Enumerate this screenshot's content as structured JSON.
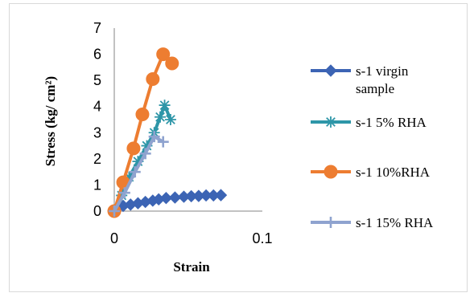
{
  "chart_data": {
    "type": "line",
    "title": "",
    "xlabel": "Strain",
    "ylabel": "Stress (kg/ cm²)",
    "xlim": [
      0,
      0.1
    ],
    "ylim": [
      0,
      7
    ],
    "x_ticks": [
      "0",
      "0.1"
    ],
    "y_ticks": [
      "0",
      "1",
      "2",
      "3",
      "4",
      "5",
      "6",
      "7"
    ],
    "grid": false,
    "legend_position": "right",
    "series": [
      {
        "name": "s-1 virgin sample",
        "legend_lines": [
          "s-1 virgin",
          "sample"
        ],
        "color": "#3c64b4",
        "marker": "diamond",
        "points": [
          [
            0,
            0
          ],
          [
            0.006,
            0.2
          ],
          [
            0.011,
            0.25
          ],
          [
            0.016,
            0.3
          ],
          [
            0.021,
            0.35
          ],
          [
            0.026,
            0.4
          ],
          [
            0.03,
            0.45
          ],
          [
            0.035,
            0.5
          ],
          [
            0.041,
            0.52
          ],
          [
            0.047,
            0.55
          ],
          [
            0.052,
            0.57
          ],
          [
            0.057,
            0.58
          ],
          [
            0.062,
            0.6
          ],
          [
            0.067,
            0.6
          ],
          [
            0.072,
            0.61
          ]
        ]
      },
      {
        "name": "s-1 5% RHA",
        "legend_lines": [
          "s-1 5% RHA"
        ],
        "color": "#2e96a8",
        "marker": "star",
        "points": [
          [
            0,
            0
          ],
          [
            0.005,
            0.6
          ],
          [
            0.01,
            1.3
          ],
          [
            0.016,
            1.9
          ],
          [
            0.022,
            2.5
          ],
          [
            0.027,
            3.0
          ],
          [
            0.031,
            3.6
          ],
          [
            0.034,
            4.05
          ],
          [
            0.038,
            3.5
          ]
        ]
      },
      {
        "name": "s-1 10%RHA",
        "legend_lines": [
          "s-1 10%RHA"
        ],
        "color": "#ed7d31",
        "marker": "circle",
        "points": [
          [
            0,
            0
          ],
          [
            0.006,
            1.1
          ],
          [
            0.013,
            2.4
          ],
          [
            0.019,
            3.7
          ],
          [
            0.026,
            5.05
          ],
          [
            0.033,
            6.0
          ],
          [
            0.039,
            5.65
          ]
        ]
      },
      {
        "name": "s-1 15% RHA",
        "legend_lines": [
          "s-1 15% RHA"
        ],
        "color": "#8fa3cf",
        "marker": "plus",
        "points": [
          [
            0,
            0
          ],
          [
            0.007,
            0.7
          ],
          [
            0.014,
            1.5
          ],
          [
            0.021,
            2.2
          ],
          [
            0.027,
            2.85
          ],
          [
            0.033,
            2.65
          ]
        ]
      }
    ]
  }
}
